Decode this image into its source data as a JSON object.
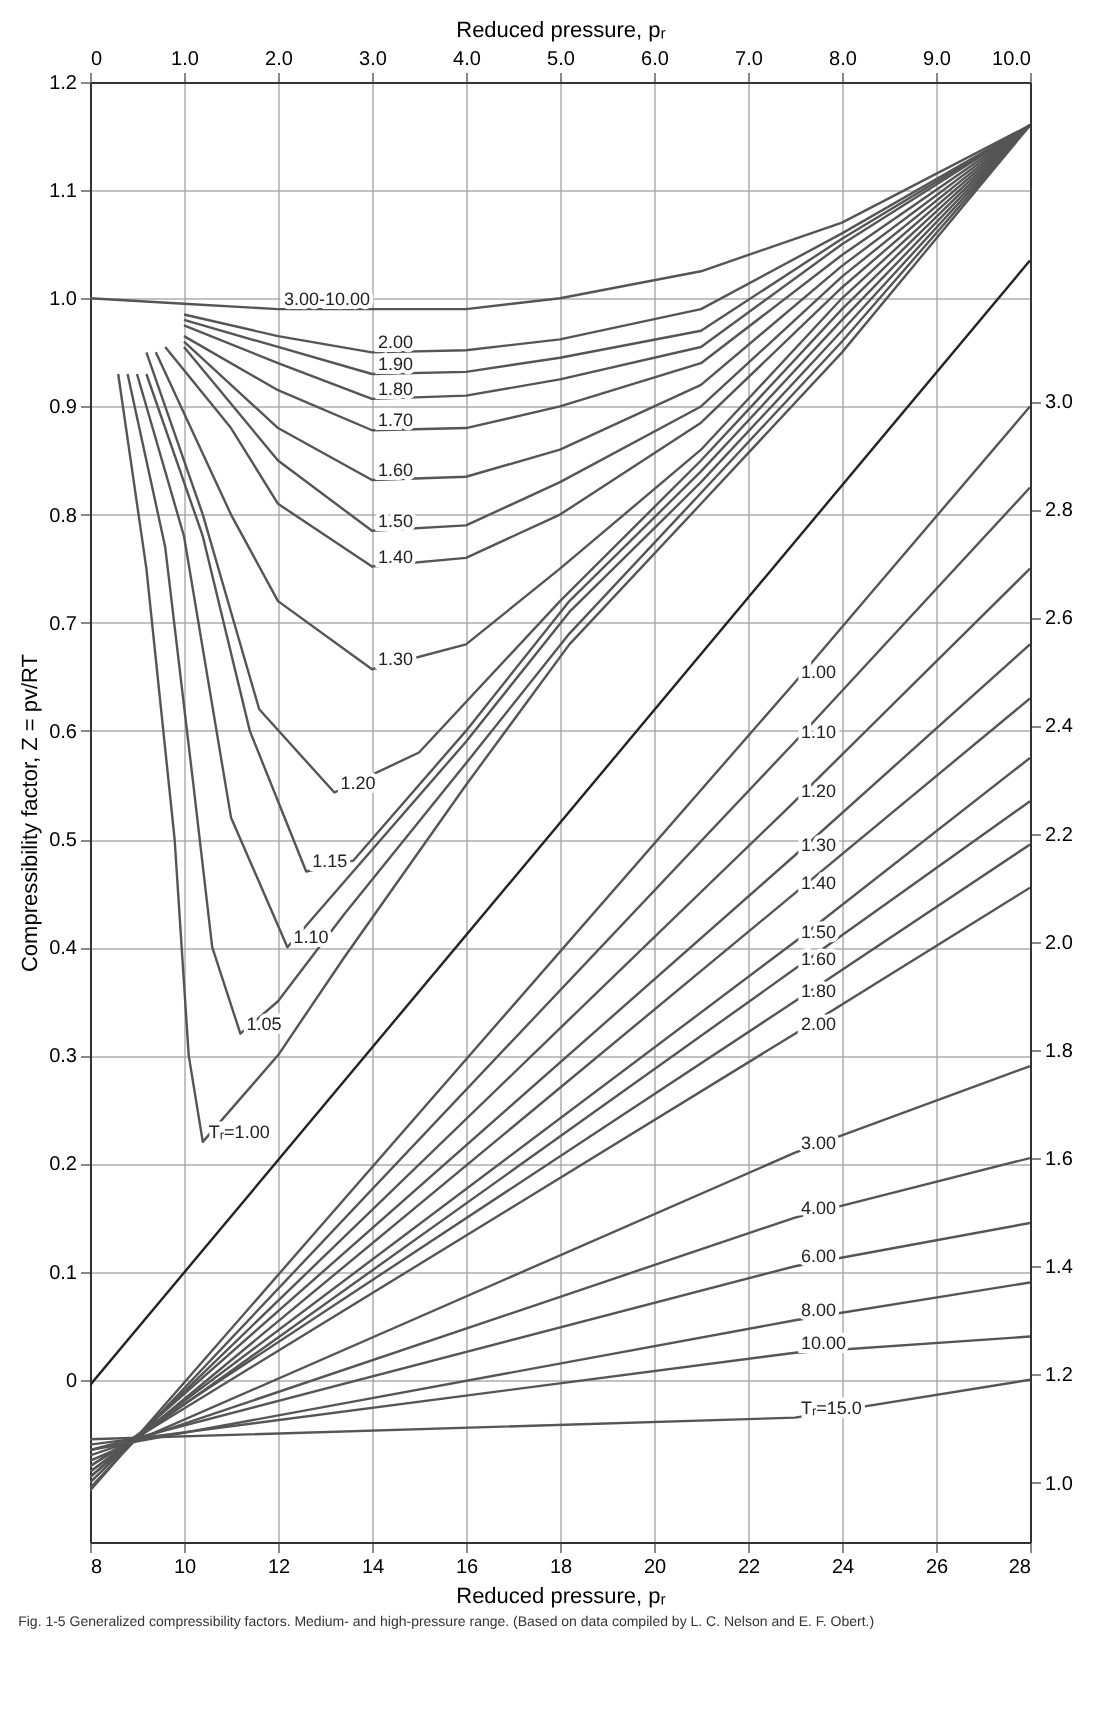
{
  "chart_data": {
    "type": "line",
    "xlabel": "Reduced pressure, pᵣ",
    "x2label": "Reduced pressure, pᵣ",
    "ylabel": "Compressibility factor, Z = pv/RT",
    "annotations": [
      "Fig. 1-5 Generalized compressibility factors. Medium- and high-pressure range. (Based on data compiled by L. C. Nelson and E. F. Obert.)"
    ],
    "xlim": [
      8,
      28
    ],
    "xticks": [
      8,
      10,
      12,
      14,
      16,
      18,
      20,
      22,
      24,
      26,
      28
    ],
    "x2lim": [
      0,
      10
    ],
    "x2ticks": [
      0,
      {
        "value": 1,
        "label": "1.0"
      },
      {
        "value": 2,
        "label": "2.0"
      },
      {
        "value": 3,
        "label": "3.0"
      },
      {
        "value": 4,
        "label": "4.0"
      },
      {
        "value": 5,
        "label": "5.0"
      },
      {
        "value": 6,
        "label": "6.0"
      },
      {
        "value": 7,
        "label": "7.0"
      },
      {
        "value": 8,
        "label": "8.0"
      },
      {
        "value": 9,
        "label": "9.0"
      },
      {
        "value": 10,
        "label": "10.0"
      }
    ],
    "ylim": [
      -0.15,
      1.2
    ],
    "yticks": [
      0,
      0.1,
      0.2,
      0.3,
      0.4,
      0.5,
      0.6,
      0.7,
      0.8,
      0.9,
      {
        "value": 1,
        "label": "1.0"
      },
      1.1,
      1.2
    ],
    "y2lim": [
      0.89,
      3.59
    ],
    "y2ticks": [
      {
        "value": 1,
        "label": "1.0"
      },
      1.2,
      1.4,
      1.6,
      1.8,
      {
        "value": 2,
        "label": "2.0"
      },
      2.2,
      2.4,
      2.6,
      2.8,
      {
        "value": 3,
        "label": "3.0"
      }
    ],
    "grid": true,
    "series": [
      {
        "name": "3.00-10.00",
        "color": "#555555",
        "axis": "x2",
        "x": [
          0,
          1,
          2,
          3,
          4,
          5,
          6.5,
          8,
          10
        ],
        "values": [
          1.0,
          0.995,
          0.99,
          0.99,
          0.99,
          1.0,
          1.025,
          1.07,
          1.16
        ]
      },
      {
        "name": "2.00",
        "color": "#555555",
        "axis": "x2",
        "x": [
          1,
          2,
          3,
          4,
          5,
          6.5,
          8,
          10
        ],
        "values": [
          0.985,
          0.965,
          0.95,
          0.952,
          0.962,
          0.99,
          1.06,
          1.16
        ]
      },
      {
        "name": "1.90",
        "color": "#555555",
        "axis": "x2",
        "x": [
          1,
          2,
          3,
          4,
          5,
          6.5,
          8,
          10
        ],
        "values": [
          0.98,
          0.955,
          0.93,
          0.932,
          0.945,
          0.97,
          1.055,
          1.16
        ]
      },
      {
        "name": "1.80",
        "color": "#555555",
        "axis": "x2",
        "x": [
          1,
          2,
          3,
          4,
          5,
          6.5,
          8,
          10
        ],
        "values": [
          0.975,
          0.94,
          0.907,
          0.91,
          0.925,
          0.955,
          1.05,
          1.16
        ]
      },
      {
        "name": "1.70",
        "color": "#555555",
        "axis": "x2",
        "x": [
          1,
          2,
          3,
          4,
          5,
          6.5,
          8,
          10
        ],
        "values": [
          0.965,
          0.915,
          0.878,
          0.88,
          0.9,
          0.94,
          1.04,
          1.16
        ]
      },
      {
        "name": "1.60",
        "color": "#555555",
        "axis": "x2",
        "x": [
          1,
          2,
          3,
          4,
          5,
          6.5,
          8,
          10
        ],
        "values": [
          0.96,
          0.88,
          0.832,
          0.835,
          0.86,
          0.92,
          1.03,
          1.16
        ]
      },
      {
        "name": "1.50",
        "color": "#555555",
        "axis": "x2",
        "x": [
          1,
          2,
          3,
          4,
          5,
          6.5,
          8,
          10
        ],
        "values": [
          0.955,
          0.85,
          0.785,
          0.79,
          0.83,
          0.9,
          1.02,
          1.16
        ]
      },
      {
        "name": "1.40",
        "color": "#555555",
        "axis": "x2",
        "x": [
          0.8,
          1.5,
          2,
          3,
          4,
          5,
          6.5,
          8,
          10
        ],
        "values": [
          0.955,
          0.88,
          0.81,
          0.752,
          0.76,
          0.8,
          0.885,
          1.01,
          1.16
        ]
      },
      {
        "name": "1.30",
        "color": "#555555",
        "axis": "x2",
        "x": [
          0.7,
          1.5,
          2,
          3,
          4,
          5,
          6.5,
          8,
          10
        ],
        "values": [
          0.95,
          0.8,
          0.72,
          0.657,
          0.68,
          0.75,
          0.86,
          1.0,
          1.16
        ]
      },
      {
        "name": "1.20",
        "color": "#555555",
        "axis": "x2",
        "x": [
          0.6,
          1.2,
          1.8,
          2.6,
          3.5,
          5,
          6.5,
          8,
          10
        ],
        "values": [
          0.95,
          0.8,
          0.62,
          0.543,
          0.58,
          0.72,
          0.85,
          0.99,
          1.16
        ]
      },
      {
        "name": "1.15",
        "color": "#555555",
        "axis": "x2",
        "x": [
          0.6,
          1.2,
          1.7,
          2.3,
          2.8,
          4,
          5.1,
          6.5,
          8,
          10
        ],
        "values": [
          0.93,
          0.78,
          0.6,
          0.47,
          0.48,
          0.6,
          0.72,
          0.84,
          0.98,
          1.16
        ]
      },
      {
        "name": "1.10",
        "color": "#555555",
        "axis": "x2",
        "x": [
          0.5,
          1,
          1.5,
          2.1,
          2.7,
          4,
          5.1,
          6.5,
          8,
          10
        ],
        "values": [
          0.93,
          0.78,
          0.52,
          0.4,
          0.46,
          0.59,
          0.71,
          0.83,
          0.97,
          1.16
        ]
      },
      {
        "name": "1.05",
        "color": "#555555",
        "axis": "x2",
        "x": [
          0.4,
          0.8,
          1.1,
          1.3,
          1.6,
          2,
          2.7,
          4,
          5.1,
          6.5,
          8,
          10
        ],
        "values": [
          0.93,
          0.77,
          0.55,
          0.4,
          0.32,
          0.35,
          0.43,
          0.57,
          0.69,
          0.82,
          0.96,
          1.16
        ]
      },
      {
        "name": "Tᵣ=1.00",
        "color": "#555555",
        "axis": "x2",
        "x": [
          0.3,
          0.6,
          0.9,
          1.05,
          1.2,
          1.5,
          2,
          2.7,
          4,
          5.1,
          6.5,
          8,
          10
        ],
        "values": [
          0.93,
          0.75,
          0.5,
          0.3,
          0.22,
          0.25,
          0.3,
          0.39,
          0.55,
          0.68,
          0.81,
          0.95,
          1.16
        ]
      },
      {
        "color": "#222222",
        "axis": "y2",
        "x": [
          8,
          28
        ],
        "values": [
          1.18,
          3.26
        ]
      },
      {
        "name": "1.00",
        "color": "#555555",
        "axis": "y2",
        "x": [
          8,
          23,
          28
        ],
        "values": [
          0.985,
          2.48,
          2.99
        ]
      },
      {
        "name": "1.10",
        "color": "#555555",
        "axis": "y2",
        "x": [
          8,
          23,
          28
        ],
        "values": [
          0.99,
          2.37,
          2.84
        ]
      },
      {
        "name": "1.20",
        "color": "#555555",
        "axis": "y2",
        "x": [
          8,
          23,
          28
        ],
        "values": [
          1.0,
          2.26,
          2.69
        ]
      },
      {
        "name": "1.30",
        "color": "#555555",
        "axis": "y2",
        "x": [
          8,
          23,
          28
        ],
        "values": [
          1.01,
          2.16,
          2.55
        ]
      },
      {
        "name": "1.40",
        "color": "#555555",
        "axis": "y2",
        "x": [
          8,
          23,
          28
        ],
        "values": [
          1.01,
          2.09,
          2.45
        ]
      },
      {
        "name": "1.50",
        "color": "#555555",
        "axis": "y2",
        "x": [
          8,
          23,
          28
        ],
        "values": [
          1.02,
          2.0,
          2.34
        ]
      },
      {
        "name": "1.60",
        "color": "#555555",
        "axis": "y2",
        "x": [
          8,
          23,
          28
        ],
        "values": [
          1.02,
          1.95,
          2.26
        ]
      },
      {
        "name": "1.80",
        "color": "#555555",
        "axis": "y2",
        "x": [
          8,
          23,
          28
        ],
        "values": [
          1.03,
          1.89,
          2.18
        ]
      },
      {
        "name": "2.00",
        "color": "#555555",
        "axis": "y2",
        "x": [
          8,
          23,
          28
        ],
        "values": [
          1.03,
          1.83,
          2.1
        ]
      },
      {
        "name": "3.00",
        "color": "#555555",
        "axis": "y2",
        "x": [
          8,
          23,
          28
        ],
        "values": [
          1.04,
          1.61,
          1.77
        ]
      },
      {
        "name": "4.00",
        "color": "#555555",
        "axis": "y2",
        "x": [
          8,
          23,
          28
        ],
        "values": [
          1.05,
          1.49,
          1.6
        ]
      },
      {
        "name": "6.00",
        "color": "#555555",
        "axis": "y2",
        "x": [
          8,
          23,
          28
        ],
        "values": [
          1.06,
          1.4,
          1.48
        ]
      },
      {
        "name": "8.00",
        "color": "#555555",
        "axis": "y2",
        "x": [
          8,
          23,
          28
        ],
        "values": [
          1.06,
          1.3,
          1.37
        ]
      },
      {
        "name": "10.00",
        "color": "#555555",
        "axis": "y2",
        "x": [
          8,
          23,
          28
        ],
        "values": [
          1.07,
          1.24,
          1.27
        ]
      },
      {
        "name": "Tᵣ=15.0",
        "color": "#555555",
        "axis": "y2",
        "x": [
          8,
          23,
          28
        ],
        "values": [
          1.08,
          1.12,
          1.19
        ]
      }
    ]
  }
}
